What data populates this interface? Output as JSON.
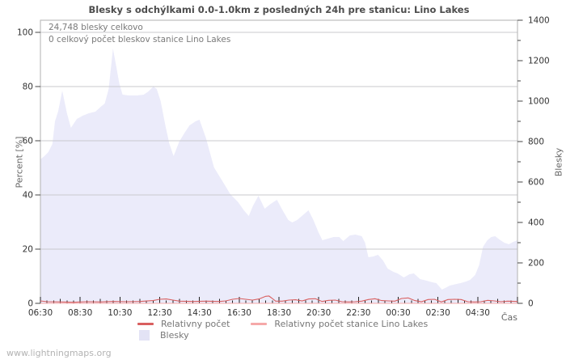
{
  "page": {
    "title": "Blesky s odchýlkami 0.0-1.0km z posledných 24h pre stanicu: Lino Lakes",
    "watermark": "www.lightningmaps.org"
  },
  "annotations": {
    "total": "24,748 blesky celkovo",
    "station_total": "0 celkový počet bleskov stanice Lino Lakes"
  },
  "legend": {
    "relative": "Relativny počet",
    "relative_station": "Relativny počet stanice Lino Lakes",
    "area": "Blesky"
  },
  "colors": {
    "relative_line": "#d95f5f",
    "station_line": "#f5a9a9",
    "area_fill": "#ebebfa",
    "legend_square": "#e3e3f5",
    "grid": "#c9c9ce",
    "frame": "#b2b2b2",
    "tick": "#222222",
    "tick_label": "#333333"
  },
  "chart_data": {
    "type": "area",
    "title": "Blesky s odchýlkami 0.0-1.0km z posledných 24h pre stanicu: Lino Lakes",
    "grid": "horizontal-only",
    "legend_position": "bottom-center",
    "x_axis": {
      "label": "Čas",
      "domain_minutes": [
        0,
        1440
      ],
      "tick_minutes": [
        0,
        120,
        240,
        360,
        480,
        600,
        720,
        840,
        960,
        1080,
        1200,
        1320
      ],
      "tick_labels": [
        "06:30",
        "08:30",
        "10:30",
        "12:30",
        "14:30",
        "16:30",
        "18:30",
        "20:30",
        "22:30",
        "00:30",
        "02:30",
        "04:30"
      ],
      "minor_tick_step_minutes": 20
    },
    "y_left": {
      "label": "Percent [%]",
      "min": 0,
      "max": 100,
      "ticks": [
        0,
        20,
        40,
        60,
        80,
        100
      ]
    },
    "y_right": {
      "label": "Blesky",
      "min": 0,
      "max": 1400,
      "ticks": [
        0,
        200,
        400,
        600,
        800,
        1000,
        1200,
        1400
      ],
      "minor_step": 100
    },
    "totals": {
      "blesky_celkovo": 24748,
      "blesky_stanica": 0
    },
    "series": [
      {
        "name": "Blesky",
        "kind": "area",
        "axis": "right",
        "color": "#ebebfa",
        "points": [
          [
            0,
            712
          ],
          [
            12,
            728
          ],
          [
            24,
            748
          ],
          [
            36,
            788
          ],
          [
            44,
            900
          ],
          [
            54,
            952
          ],
          [
            66,
            1052
          ],
          [
            80,
            940
          ],
          [
            92,
            868
          ],
          [
            110,
            912
          ],
          [
            128,
            928
          ],
          [
            146,
            940
          ],
          [
            166,
            948
          ],
          [
            182,
            972
          ],
          [
            194,
            988
          ],
          [
            206,
            1060
          ],
          [
            219,
            1260
          ],
          [
            228,
            1180
          ],
          [
            238,
            1088
          ],
          [
            248,
            1032
          ],
          [
            266,
            1028
          ],
          [
            292,
            1028
          ],
          [
            312,
            1032
          ],
          [
            326,
            1048
          ],
          [
            341,
            1072
          ],
          [
            351,
            1060
          ],
          [
            363,
            1000
          ],
          [
            377,
            880
          ],
          [
            389,
            790
          ],
          [
            402,
            728
          ],
          [
            419,
            800
          ],
          [
            434,
            840
          ],
          [
            450,
            880
          ],
          [
            468,
            900
          ],
          [
            480,
            908
          ],
          [
            499,
            820
          ],
          [
            524,
            672
          ],
          [
            548,
            608
          ],
          [
            573,
            540
          ],
          [
            597,
            500
          ],
          [
            614,
            460
          ],
          [
            629,
            432
          ],
          [
            641,
            480
          ],
          [
            658,
            532
          ],
          [
            677,
            468
          ],
          [
            695,
            492
          ],
          [
            714,
            512
          ],
          [
            731,
            460
          ],
          [
            748,
            412
          ],
          [
            760,
            400
          ],
          [
            775,
            412
          ],
          [
            792,
            436
          ],
          [
            809,
            460
          ],
          [
            824,
            412
          ],
          [
            839,
            352
          ],
          [
            851,
            312
          ],
          [
            868,
            320
          ],
          [
            885,
            328
          ],
          [
            902,
            328
          ],
          [
            914,
            308
          ],
          [
            934,
            336
          ],
          [
            951,
            340
          ],
          [
            970,
            332
          ],
          [
            980,
            300
          ],
          [
            990,
            228
          ],
          [
            1005,
            232
          ],
          [
            1019,
            240
          ],
          [
            1034,
            212
          ],
          [
            1048,
            172
          ],
          [
            1065,
            156
          ],
          [
            1078,
            148
          ],
          [
            1097,
            128
          ],
          [
            1114,
            144
          ],
          [
            1127,
            148
          ],
          [
            1146,
            120
          ],
          [
            1166,
            112
          ],
          [
            1183,
            104
          ],
          [
            1195,
            100
          ],
          [
            1212,
            68
          ],
          [
            1227,
            80
          ],
          [
            1236,
            88
          ],
          [
            1256,
            96
          ],
          [
            1268,
            100
          ],
          [
            1285,
            108
          ],
          [
            1297,
            116
          ],
          [
            1312,
            140
          ],
          [
            1324,
            188
          ],
          [
            1336,
            280
          ],
          [
            1349,
            312
          ],
          [
            1361,
            328
          ],
          [
            1373,
            332
          ],
          [
            1385,
            316
          ],
          [
            1400,
            300
          ],
          [
            1414,
            292
          ],
          [
            1427,
            304
          ],
          [
            1440,
            312
          ]
        ]
      },
      {
        "name": "Relativny počet",
        "kind": "line",
        "axis": "left",
        "color": "#d95f5f",
        "points": [
          [
            0,
            0.9
          ],
          [
            20,
            0.6
          ],
          [
            60,
            0.5
          ],
          [
            100,
            0.4
          ],
          [
            140,
            0.6
          ],
          [
            180,
            0.5
          ],
          [
            220,
            0.7
          ],
          [
            260,
            0.6
          ],
          [
            300,
            0.7
          ],
          [
            340,
            1.0
          ],
          [
            360,
            1.5
          ],
          [
            380,
            1.6
          ],
          [
            400,
            1.2
          ],
          [
            420,
            0.8
          ],
          [
            460,
            0.7
          ],
          [
            500,
            0.8
          ],
          [
            540,
            0.7
          ],
          [
            560,
            0.9
          ],
          [
            580,
            1.5
          ],
          [
            600,
            1.8
          ],
          [
            620,
            1.5
          ],
          [
            640,
            1.2
          ],
          [
            660,
            1.6
          ],
          [
            680,
            2.6
          ],
          [
            690,
            2.7
          ],
          [
            700,
            1.8
          ],
          [
            710,
            0.8
          ],
          [
            730,
            0.8
          ],
          [
            750,
            1.2
          ],
          [
            770,
            1.3
          ],
          [
            790,
            0.9
          ],
          [
            810,
            1.6
          ],
          [
            830,
            1.7
          ],
          [
            850,
            0.7
          ],
          [
            870,
            1.1
          ],
          [
            890,
            1.2
          ],
          [
            910,
            0.6
          ],
          [
            930,
            0.5
          ],
          [
            950,
            0.6
          ],
          [
            970,
            0.8
          ],
          [
            990,
            1.4
          ],
          [
            1010,
            1.7
          ],
          [
            1030,
            1.0
          ],
          [
            1050,
            0.9
          ],
          [
            1070,
            0.8
          ],
          [
            1090,
            1.8
          ],
          [
            1110,
            2.0
          ],
          [
            1130,
            1.0
          ],
          [
            1150,
            0.6
          ],
          [
            1170,
            1.4
          ],
          [
            1190,
            1.5
          ],
          [
            1210,
            0.5
          ],
          [
            1230,
            1.4
          ],
          [
            1250,
            1.5
          ],
          [
            1270,
            1.4
          ],
          [
            1290,
            0.6
          ],
          [
            1310,
            0.5
          ],
          [
            1330,
            0.6
          ],
          [
            1350,
            1.1
          ],
          [
            1370,
            0.9
          ],
          [
            1390,
            0.6
          ],
          [
            1410,
            0.8
          ],
          [
            1440,
            0.7
          ]
        ]
      },
      {
        "name": "Relativny počet stanice Lino Lakes",
        "kind": "line",
        "axis": "left",
        "color": "#f5a9a9",
        "points": [
          [
            0,
            0
          ],
          [
            1440,
            0
          ]
        ]
      }
    ]
  }
}
